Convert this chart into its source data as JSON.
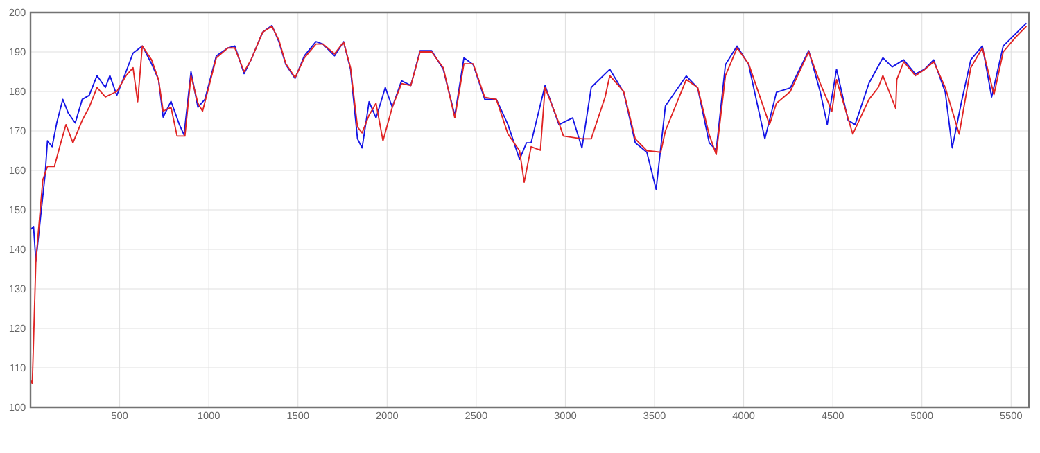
{
  "chart_data": {
    "type": "line",
    "xlim": [
      0,
      5600
    ],
    "xticks": [
      500,
      1000,
      1500,
      2000,
      2500,
      3000,
      3500,
      4000,
      4500,
      5000,
      5500
    ],
    "ylim": [
      100,
      200
    ],
    "yticks": [
      100,
      110,
      120,
      130,
      140,
      150,
      160,
      170,
      180,
      190,
      200
    ],
    "grid": true,
    "marker": "none",
    "line_style": "solid",
    "series": [
      {
        "color": "#1414e6",
        "x": [
          0,
          17,
          30,
          56,
          82,
          95,
          121,
          147,
          181,
          212,
          251,
          290,
          329,
          373,
          420,
          445,
          484,
          536,
          575,
          627,
          679,
          718,
          744,
          788,
          835,
          861,
          900,
          939,
          978,
          1042,
          1107,
          1146,
          1198,
          1237,
          1302,
          1354,
          1393,
          1432,
          1484,
          1536,
          1601,
          1640,
          1705,
          1756,
          1795,
          1834,
          1860,
          1899,
          1938,
          1990,
          2029,
          2081,
          2133,
          2185,
          2250,
          2315,
          2380,
          2431,
          2483,
          2548,
          2613,
          2678,
          2743,
          2782,
          2808,
          2886,
          2964,
          3041,
          3093,
          3145,
          3249,
          3327,
          3392,
          3457,
          3509,
          3561,
          3678,
          3742,
          3807,
          3846,
          3898,
          3963,
          4028,
          4119,
          4184,
          4262,
          4365,
          4430,
          4469,
          4521,
          4586,
          4625,
          4703,
          4781,
          4833,
          4898,
          4963,
          5014,
          5066,
          5131,
          5170,
          5222,
          5274,
          5339,
          5391,
          5456,
          5521,
          5586
        ],
        "values": [
          145,
          145.8,
          137,
          148,
          159,
          167.5,
          166,
          172,
          178,
          174.5,
          172,
          178,
          179,
          184,
          181,
          184,
          179,
          185,
          189.7,
          191.5,
          187,
          183,
          173.5,
          177.5,
          171.6,
          169,
          185,
          176,
          178,
          189,
          191,
          191.5,
          184.5,
          188,
          195,
          196.7,
          192.6,
          186.8,
          183.3,
          189,
          192.6,
          192,
          189,
          192.6,
          185.6,
          168,
          165.7,
          177.4,
          173.3,
          181,
          176,
          182.7,
          181.5,
          190.3,
          190.3,
          185.6,
          173.9,
          188.5,
          186.8,
          178,
          178,
          171.6,
          162.8,
          167,
          167,
          181.5,
          171.6,
          173.3,
          165.7,
          181,
          185.6,
          179.8,
          167,
          164.6,
          155.2,
          176.3,
          183.9,
          180.9,
          167,
          165.1,
          186.8,
          191.5,
          186.8,
          168,
          179.8,
          180.9,
          190.3,
          179.8,
          171.6,
          185.6,
          172.7,
          171.6,
          182.1,
          188.5,
          186.2,
          188,
          184.4,
          185.6,
          188,
          179.8,
          165.7,
          177.4,
          188,
          191.5,
          178.6,
          191.5,
          194.4,
          197.3
        ]
      },
      {
        "color": "#e02424",
        "x": [
          0,
          10,
          30,
          69,
          95,
          134,
          170,
          199,
          238,
          290,
          329,
          373,
          420,
          484,
          536,
          575,
          601,
          627,
          679,
          718,
          744,
          788,
          822,
          866,
          900,
          939,
          965,
          1042,
          1107,
          1146,
          1198,
          1237,
          1302,
          1354,
          1393,
          1432,
          1484,
          1536,
          1601,
          1640,
          1705,
          1756,
          1795,
          1834,
          1860,
          1899,
          1938,
          1977,
          2029,
          2081,
          2133,
          2185,
          2250,
          2315,
          2380,
          2431,
          2483,
          2548,
          2613,
          2678,
          2743,
          2769,
          2808,
          2860,
          2886,
          2964,
          2989,
          3093,
          3145,
          3223,
          3249,
          3327,
          3392,
          3457,
          3535,
          3561,
          3678,
          3742,
          3807,
          3846,
          3898,
          3963,
          4028,
          4145,
          4184,
          4262,
          4365,
          4430,
          4495,
          4521,
          4612,
          4703,
          4755,
          4781,
          4853,
          4859,
          4898,
          4963,
          5014,
          5066,
          5131,
          5209,
          5274,
          5339,
          5404,
          5456,
          5521,
          5586
        ],
        "values": [
          107,
          106,
          137,
          157.6,
          161,
          161,
          167,
          171.6,
          167,
          172.7,
          176,
          181,
          178.6,
          180,
          184,
          186,
          177.4,
          191.5,
          188,
          183,
          175,
          176,
          168.7,
          168.7,
          184,
          177,
          175,
          188.5,
          191,
          191,
          185,
          188,
          195,
          196.5,
          193,
          187,
          183.5,
          188.5,
          192,
          192,
          189.5,
          192.5,
          186,
          171,
          169.5,
          174,
          177,
          167.5,
          176,
          182,
          181.5,
          190,
          190,
          186,
          173.3,
          187,
          187,
          178.5,
          178,
          169.2,
          165,
          157,
          166,
          165.1,
          181,
          172,
          168.7,
          168,
          168,
          178.6,
          184,
          180,
          168,
          165,
          164.6,
          170,
          183,
          181,
          169,
          164,
          184,
          191,
          187,
          171.6,
          177,
          180,
          190,
          182,
          175,
          183,
          169.2,
          178,
          181,
          184,
          175.7,
          183,
          187.5,
          184,
          185.5,
          187.5,
          181,
          169.2,
          186,
          191,
          179.2,
          190,
          193.5,
          196.5
        ]
      }
    ]
  }
}
